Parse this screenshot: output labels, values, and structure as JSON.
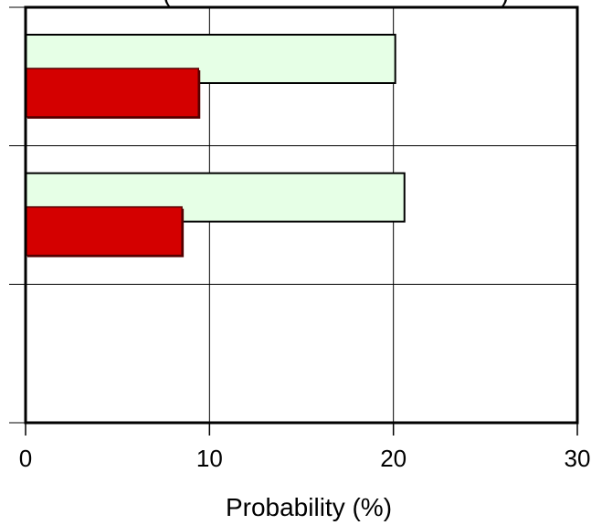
{
  "chart_data": {
    "type": "bar",
    "orientation": "horizontal",
    "title": "(",
    "title_end": ")",
    "xlabel": "Probability (%)",
    "ylabel": "",
    "xlim": [
      0,
      30
    ],
    "x_ticks": [
      "0",
      "10",
      "20",
      "30"
    ],
    "grid": true,
    "num_category_slots": 3,
    "groups": [
      {
        "slot": 0,
        "light": 20.1,
        "dark": 9.4
      },
      {
        "slot": 1,
        "light": 20.6,
        "dark": 8.5
      }
    ],
    "series": [
      {
        "key": "light",
        "color": "#e6ffe6"
      },
      {
        "key": "dark",
        "color": "#d40000"
      }
    ]
  }
}
